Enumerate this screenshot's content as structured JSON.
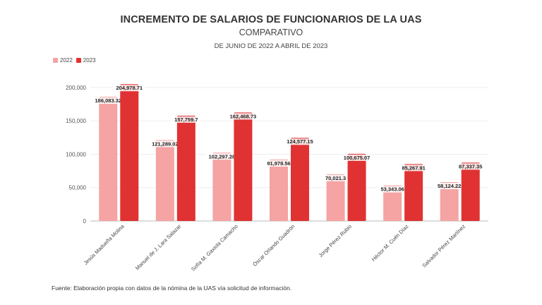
{
  "chart_data": {
    "type": "bar",
    "title": "INCREMENTO DE SALARIOS DE FUNCIONARIOS DE LA UAS",
    "subtitle": "COMPARATIVO",
    "subtitle2": "DE JUNIO DE 2022 A ABRIL DE 2023",
    "legend_position": "top-left",
    "grid": true,
    "ylim": [
      0,
      220000
    ],
    "yticks": [
      0,
      50000,
      100000,
      150000,
      200000
    ],
    "ytick_labels": [
      "0",
      "50,000",
      "100,000",
      "150,000",
      "200,000"
    ],
    "categories": [
      "Jesús Madueña Molina",
      "Manuel de J. Lara Salazar",
      "Sofía M. Gaxiola Camacho",
      "Óscar Orlando Guadrón",
      "Jorge Pérez Rubio",
      "Héctor M. Cuén Díaz",
      "Salvador Pérez Martínez"
    ],
    "series": [
      {
        "name": "2022",
        "color": "#f5a3a3",
        "values": [
          186083.32,
          121289.02,
          102297.28,
          91978.56,
          70021.3,
          53343.06,
          58124.22
        ],
        "labels": [
          "186,083.32",
          "121,289.02",
          "102,297.28",
          "91,978.56",
          "70,021.3",
          "53,343.06",
          "58,124.22"
        ]
      },
      {
        "name": "2023",
        "color": "#e03232",
        "values": [
          204978.71,
          157759.7,
          162468.73,
          124577.15,
          100675.07,
          85267.91,
          87337.35
        ],
        "labels": [
          "204,978.71",
          "157,759.7",
          "162,468.73",
          "124,577.15",
          "100,675.07",
          "85,267.91",
          "87,337.35"
        ]
      }
    ],
    "source": "Fuente: Elaboración propia con datos de la nómina de la UAS vía solicitud de información."
  }
}
